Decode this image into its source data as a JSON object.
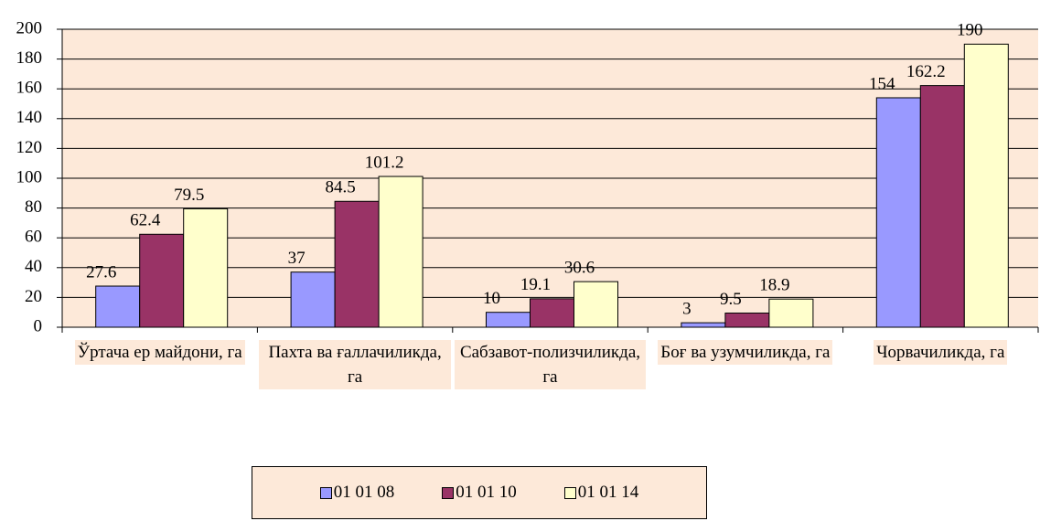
{
  "chart_data": {
    "type": "bar",
    "categories": [
      "Ўртача ер майдони, га",
      "Пахта ва ғаллачиликда, га",
      "Сабзавот-полизчиликда, га",
      "Боғ ва узумчиликда, га",
      "Чорвачиликда, га"
    ],
    "series": [
      {
        "name": "01 01 08",
        "color": "#9999ff",
        "values": [
          27.6,
          37,
          10,
          3,
          154
        ]
      },
      {
        "name": "01 01 10",
        "color": "#993366",
        "values": [
          62.4,
          84.5,
          19.1,
          9.5,
          162.2
        ]
      },
      {
        "name": "01 01 14",
        "color": "#ffffcc",
        "values": [
          79.5,
          101.2,
          30.6,
          18.9,
          190
        ]
      }
    ],
    "ylim": [
      0,
      200
    ],
    "yticks": [
      0,
      20,
      40,
      60,
      80,
      100,
      120,
      140,
      160,
      180,
      200
    ],
    "grid": true,
    "legend": "bottom",
    "background": "#fde9d9"
  }
}
